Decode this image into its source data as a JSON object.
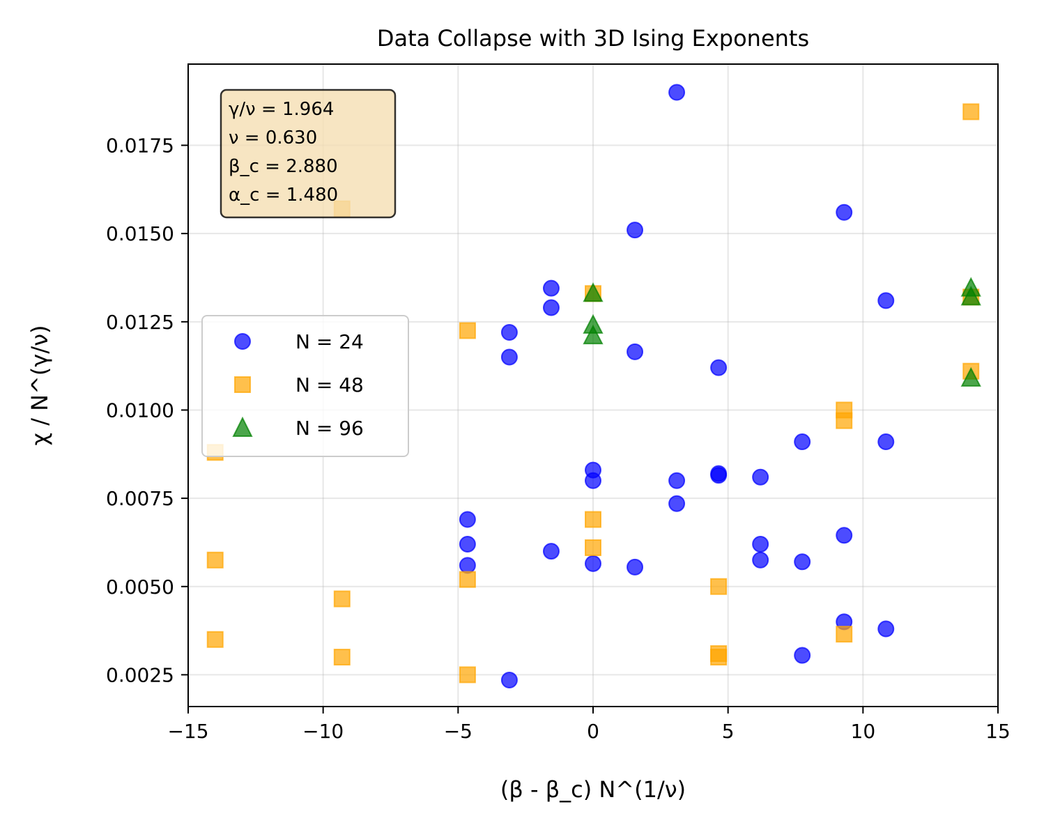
{
  "chart_data": {
    "type": "scatter",
    "title": "Data Collapse with 3D Ising Exponents",
    "xlabel": "(β - β_c) N^(1/ν)",
    "ylabel": "χ / N^(γ/ν)",
    "xlim": [
      -15,
      15
    ],
    "ylim": [
      0.0016,
      0.0198
    ],
    "xticks": [
      -15,
      -10,
      -5,
      0,
      5,
      10,
      15
    ],
    "xtick_labels": [
      "−15",
      "−10",
      "−5",
      "0",
      "5",
      "10",
      "15"
    ],
    "yticks": [
      0.0025,
      0.005,
      0.0075,
      0.01,
      0.0125,
      0.015,
      0.0175
    ],
    "ytick_labels": [
      "0.0025",
      "0.0050",
      "0.0075",
      "0.0100",
      "0.0125",
      "0.0150",
      "0.0175"
    ],
    "grid": true,
    "legend_position": "center-left",
    "annotation": [
      "γ/ν = 1.964",
      "ν = 0.630",
      "β_c = 2.880",
      "α_c = 1.480"
    ],
    "series": [
      {
        "name": "N = 24",
        "marker": "circle",
        "color": "#0000ff",
        "points": [
          [
            3.1,
            0.019
          ],
          [
            9.3,
            0.0156
          ],
          [
            1.55,
            0.0151
          ],
          [
            -1.55,
            0.01345
          ],
          [
            -1.55,
            0.0129
          ],
          [
            10.85,
            0.0131
          ],
          [
            -3.1,
            0.0122
          ],
          [
            -3.1,
            0.0115
          ],
          [
            1.55,
            0.01165
          ],
          [
            4.65,
            0.0112
          ],
          [
            7.75,
            0.0091
          ],
          [
            10.85,
            0.0091
          ],
          [
            0,
            0.0083
          ],
          [
            0,
            0.008
          ],
          [
            4.65,
            0.0082
          ],
          [
            4.65,
            0.00815
          ],
          [
            6.2,
            0.0081
          ],
          [
            3.1,
            0.008
          ],
          [
            3.1,
            0.00735
          ],
          [
            -4.65,
            0.0069
          ],
          [
            -4.65,
            0.0062
          ],
          [
            -4.65,
            0.0056
          ],
          [
            -1.55,
            0.006
          ],
          [
            0,
            0.00565
          ],
          [
            1.55,
            0.00555
          ],
          [
            6.2,
            0.0062
          ],
          [
            6.2,
            0.00575
          ],
          [
            7.75,
            0.0057
          ],
          [
            9.3,
            0.00645
          ],
          [
            9.3,
            0.004
          ],
          [
            10.85,
            0.0038
          ],
          [
            7.75,
            0.00305
          ],
          [
            -3.1,
            0.00235
          ]
        ]
      },
      {
        "name": "N = 48",
        "marker": "square",
        "color": "#ffa500",
        "points": [
          [
            14,
            0.01845
          ],
          [
            -9.3,
            0.0157
          ],
          [
            0,
            0.0133
          ],
          [
            14,
            0.0132
          ],
          [
            -4.65,
            0.01225
          ],
          [
            14,
            0.0111
          ],
          [
            9.3,
            0.01
          ],
          [
            9.3,
            0.0097
          ],
          [
            -14,
            0.0088
          ],
          [
            0,
            0.0069
          ],
          [
            0,
            0.0061
          ],
          [
            -14,
            0.00575
          ],
          [
            -4.65,
            0.0052
          ],
          [
            4.65,
            0.005
          ],
          [
            -9.3,
            0.00465
          ],
          [
            9.3,
            0.00365
          ],
          [
            -14,
            0.0035
          ],
          [
            4.65,
            0.0031
          ],
          [
            4.65,
            0.003
          ],
          [
            -9.3,
            0.003
          ],
          [
            -4.65,
            0.0025
          ]
        ]
      },
      {
        "name": "N = 96",
        "marker": "triangle",
        "color": "#008000",
        "points": [
          [
            0,
            0.0133
          ],
          [
            0,
            0.0124
          ],
          [
            0,
            0.0121
          ],
          [
            14,
            0.01345
          ],
          [
            14,
            0.0132
          ],
          [
            14,
            0.0109
          ]
        ]
      }
    ]
  }
}
